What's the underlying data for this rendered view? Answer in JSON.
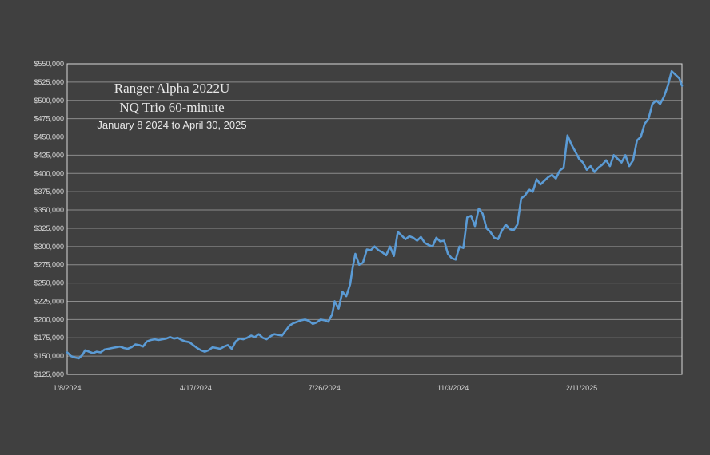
{
  "chart_data": {
    "type": "line",
    "title_lines": [
      "Ranger Alpha 2022U",
      "NQ Trio 60-minute",
      "January 8 2024 to April 30, 2025"
    ],
    "xlabel": "",
    "ylabel": "",
    "ylim": [
      125000,
      550000
    ],
    "ystep": 25000,
    "y_tick_labels": [
      "$125,000",
      "$150,000",
      "$175,000",
      "$200,000",
      "$225,000",
      "$250,000",
      "$275,000",
      "$300,000",
      "$325,000",
      "$350,000",
      "$375,000",
      "$400,000",
      "$425,000",
      "$450,000",
      "$475,000",
      "$500,000",
      "$525,000",
      "$550,000"
    ],
    "x_tick_labels": [
      "1/8/2024",
      "4/17/2024",
      "7/26/2024",
      "11/3/2024",
      "2/11/2025"
    ],
    "x_range": [
      "1/8/2024",
      "4/30/2025"
    ],
    "grid": true,
    "line_color": "#5b9bd5",
    "series": [
      {
        "points": [
          [
            "1/8/2024",
            155000
          ],
          [
            "1/11/2024",
            150000
          ],
          [
            "1/14/2024",
            148000
          ],
          [
            "1/17/2024",
            147000
          ],
          [
            "1/20/2024",
            152000
          ],
          [
            "1/22/2024",
            158000
          ],
          [
            "1/25/2024",
            156000
          ],
          [
            "1/28/2024",
            154000
          ],
          [
            "1/31/2024",
            156000
          ],
          [
            "2/3/2024",
            155000
          ],
          [
            "2/6/2024",
            159000
          ],
          [
            "2/9/2024",
            160000
          ],
          [
            "2/12/2024",
            161000
          ],
          [
            "2/15/2024",
            162000
          ],
          [
            "2/18/2024",
            163000
          ],
          [
            "2/21/2024",
            161000
          ],
          [
            "2/24/2024",
            160000
          ],
          [
            "2/27/2024",
            162000
          ],
          [
            "3/1/2024",
            166000
          ],
          [
            "3/4/2024",
            165000
          ],
          [
            "3/7/2024",
            163000
          ],
          [
            "3/10/2024",
            170000
          ],
          [
            "3/13/2024",
            172000
          ],
          [
            "3/16/2024",
            173000
          ],
          [
            "3/19/2024",
            172000
          ],
          [
            "3/22/2024",
            173000
          ],
          [
            "3/25/2024",
            174000
          ],
          [
            "3/28/2024",
            176000
          ],
          [
            "3/31/2024",
            174000
          ],
          [
            "4/3/2024",
            175000
          ],
          [
            "4/6/2024",
            172000
          ],
          [
            "4/9/2024",
            170000
          ],
          [
            "4/12/2024",
            169000
          ],
          [
            "4/15/2024",
            165000
          ],
          [
            "4/18/2024",
            161000
          ],
          [
            "4/21/2024",
            158000
          ],
          [
            "4/24/2024",
            156000
          ],
          [
            "4/27/2024",
            158000
          ],
          [
            "4/30/2024",
            162000
          ],
          [
            "5/3/2024",
            161000
          ],
          [
            "5/6/2024",
            160000
          ],
          [
            "5/9/2024",
            163000
          ],
          [
            "5/12/2024",
            165000
          ],
          [
            "5/15/2024",
            160000
          ],
          [
            "5/18/2024",
            170000
          ],
          [
            "5/21/2024",
            174000
          ],
          [
            "5/24/2024",
            173000
          ],
          [
            "5/27/2024",
            175000
          ],
          [
            "5/30/2024",
            178000
          ],
          [
            "6/2/2024",
            176000
          ],
          [
            "6/5/2024",
            180000
          ],
          [
            "6/8/2024",
            175000
          ],
          [
            "6/11/2024",
            173000
          ],
          [
            "6/14/2024",
            177000
          ],
          [
            "6/17/2024",
            180000
          ],
          [
            "6/20/2024",
            179000
          ],
          [
            "6/23/2024",
            178000
          ],
          [
            "6/26/2024",
            185000
          ],
          [
            "6/29/2024",
            192000
          ],
          [
            "7/2/2024",
            195000
          ],
          [
            "7/5/2024",
            197000
          ],
          [
            "7/8/2024",
            199000
          ],
          [
            "7/11/2024",
            200000
          ],
          [
            "7/14/2024",
            198000
          ],
          [
            "7/17/2024",
            194000
          ],
          [
            "7/20/2024",
            196000
          ],
          [
            "7/23/2024",
            200000
          ],
          [
            "7/26/2024",
            199000
          ],
          [
            "7/29/2024",
            197000
          ],
          [
            "8/1/2024",
            207000
          ],
          [
            "8/3/2024",
            225000
          ],
          [
            "8/6/2024",
            215000
          ],
          [
            "8/9/2024",
            238000
          ],
          [
            "8/12/2024",
            232000
          ],
          [
            "8/15/2024",
            248000
          ],
          [
            "8/17/2024",
            272000
          ],
          [
            "8/19/2024",
            290000
          ],
          [
            "8/22/2024",
            275000
          ],
          [
            "8/25/2024",
            278000
          ],
          [
            "8/28/2024",
            296000
          ],
          [
            "8/31/2024",
            295000
          ],
          [
            "9/3/2024",
            300000
          ],
          [
            "9/6/2024",
            295000
          ],
          [
            "9/9/2024",
            292000
          ],
          [
            "9/12/2024",
            288000
          ],
          [
            "9/15/2024",
            300000
          ],
          [
            "9/18/2024",
            287000
          ],
          [
            "9/21/2024",
            320000
          ],
          [
            "9/24/2024",
            315000
          ],
          [
            "9/27/2024",
            310000
          ],
          [
            "9/30/2024",
            314000
          ],
          [
            "10/3/2024",
            312000
          ],
          [
            "10/6/2024",
            308000
          ],
          [
            "10/9/2024",
            313000
          ],
          [
            "10/12/2024",
            305000
          ],
          [
            "10/15/2024",
            302000
          ],
          [
            "10/18/2024",
            300000
          ],
          [
            "10/21/2024",
            312000
          ],
          [
            "10/24/2024",
            307000
          ],
          [
            "10/27/2024",
            308000
          ],
          [
            "10/30/2024",
            290000
          ],
          [
            "11/2/2024",
            284000
          ],
          [
            "11/5/2024",
            282000
          ],
          [
            "11/8/2024",
            300000
          ],
          [
            "11/11/2024",
            298000
          ],
          [
            "11/14/2024",
            340000
          ],
          [
            "11/17/2024",
            342000
          ],
          [
            "11/20/2024",
            328000
          ],
          [
            "11/23/2024",
            352000
          ],
          [
            "11/26/2024",
            345000
          ],
          [
            "11/29/2024",
            325000
          ],
          [
            "12/2/2024",
            320000
          ],
          [
            "12/5/2024",
            312000
          ],
          [
            "12/8/2024",
            310000
          ],
          [
            "12/11/2024",
            322000
          ],
          [
            "12/14/2024",
            330000
          ],
          [
            "12/17/2024",
            324000
          ],
          [
            "12/20/2024",
            322000
          ],
          [
            "12/23/2024",
            330000
          ],
          [
            "12/26/2024",
            366000
          ],
          [
            "12/29/2024",
            370000
          ],
          [
            "1/1/2025",
            378000
          ],
          [
            "1/4/2025",
            375000
          ],
          [
            "1/7/2025",
            392000
          ],
          [
            "1/10/2025",
            385000
          ],
          [
            "1/13/2025",
            390000
          ],
          [
            "1/16/2025",
            395000
          ],
          [
            "1/19/2025",
            398000
          ],
          [
            "1/22/2025",
            393000
          ],
          [
            "1/25/2025",
            404000
          ],
          [
            "1/28/2025",
            408000
          ],
          [
            "1/31/2025",
            452000
          ],
          [
            "2/3/2025",
            440000
          ],
          [
            "2/6/2025",
            430000
          ],
          [
            "2/9/2025",
            420000
          ],
          [
            "2/12/2025",
            415000
          ],
          [
            "2/15/2025",
            405000
          ],
          [
            "2/18/2025",
            410000
          ],
          [
            "2/21/2025",
            402000
          ],
          [
            "2/24/2025",
            408000
          ],
          [
            "2/27/2025",
            412000
          ],
          [
            "3/2/2025",
            418000
          ],
          [
            "3/5/2025",
            410000
          ],
          [
            "3/8/2025",
            425000
          ],
          [
            "3/11/2025",
            420000
          ],
          [
            "3/14/2025",
            415000
          ],
          [
            "3/17/2025",
            425000
          ],
          [
            "3/20/2025",
            410000
          ],
          [
            "3/23/2025",
            418000
          ],
          [
            "3/26/2025",
            445000
          ],
          [
            "3/29/2025",
            450000
          ],
          [
            "4/1/2025",
            468000
          ],
          [
            "4/4/2025",
            475000
          ],
          [
            "4/7/2025",
            495000
          ],
          [
            "4/10/2025",
            500000
          ],
          [
            "4/13/2025",
            495000
          ],
          [
            "4/16/2025",
            505000
          ],
          [
            "4/19/2025",
            520000
          ],
          [
            "4/22/2025",
            540000
          ],
          [
            "4/25/2025",
            535000
          ],
          [
            "4/28/2025",
            530000
          ],
          [
            "4/30/2025",
            520000
          ]
        ]
      }
    ]
  }
}
